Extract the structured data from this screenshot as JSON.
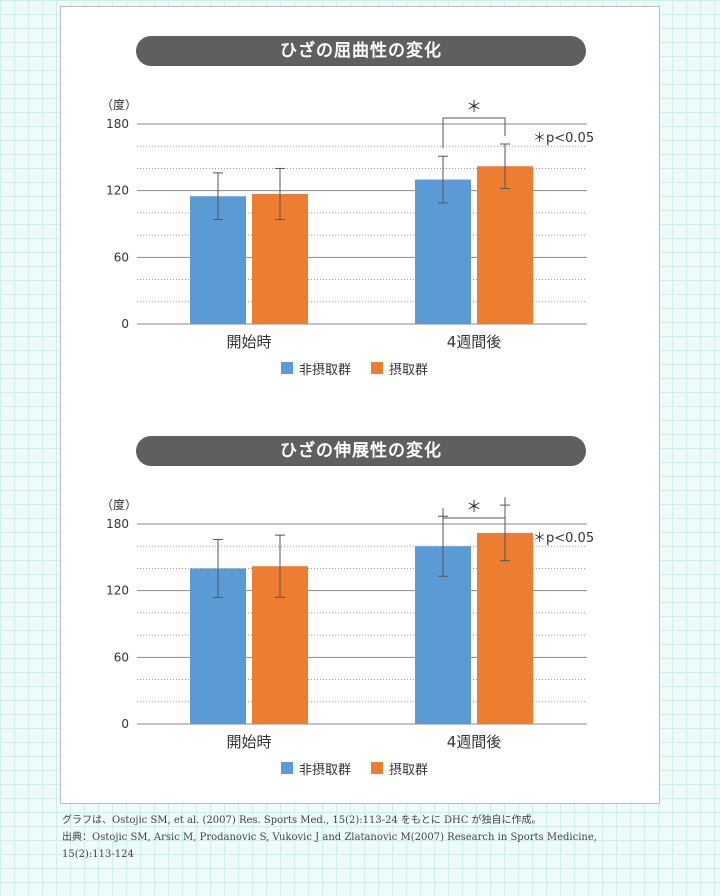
{
  "chart_data": [
    {
      "type": "bar",
      "title": "ひざの屈曲性の変化",
      "ylabel": "（度）",
      "ylim": [
        0,
        180
      ],
      "yticks": [
        "0",
        "60",
        "120",
        "180"
      ],
      "categories": [
        "開始時",
        "4週間後"
      ],
      "series": [
        {
          "name": "非摂取群",
          "color": "#5b9bd5",
          "values": [
            115,
            130
          ],
          "error": [
            21,
            21
          ]
        },
        {
          "name": "摂取群",
          "color": "#ed7d31",
          "values": [
            117,
            142
          ],
          "error": [
            23,
            20
          ]
        }
      ],
      "significance": {
        "mark": "＊",
        "note": "＊p<0.05"
      },
      "grid": true
    },
    {
      "type": "bar",
      "title": "ひざの伸展性の変化",
      "ylabel": "（度）",
      "ylim": [
        0,
        180
      ],
      "yticks": [
        "0",
        "60",
        "120",
        "180"
      ],
      "categories": [
        "開始時",
        "4週間後"
      ],
      "series": [
        {
          "name": "非摂取群",
          "color": "#5b9bd5",
          "values": [
            140,
            160
          ],
          "error": [
            26,
            27
          ]
        },
        {
          "name": "摂取群",
          "color": "#ed7d31",
          "values": [
            142,
            172
          ],
          "error": [
            28,
            25
          ]
        }
      ],
      "significance": {
        "mark": "＊",
        "note": "＊p<0.05"
      },
      "grid": true
    }
  ],
  "footnote": {
    "line1": "グラフは、Ostojic SM, et al. (2007) Res. Sports Med., 15(2):113-24 をもとに DHC が独自に作成。",
    "line2": "出典：Ostojic SM, Arsic M, Prodanovic S, Vukovic J and Zlatanovic M(2007) Research in Sports Medicine,",
    "line3": "15(2):113-124"
  }
}
